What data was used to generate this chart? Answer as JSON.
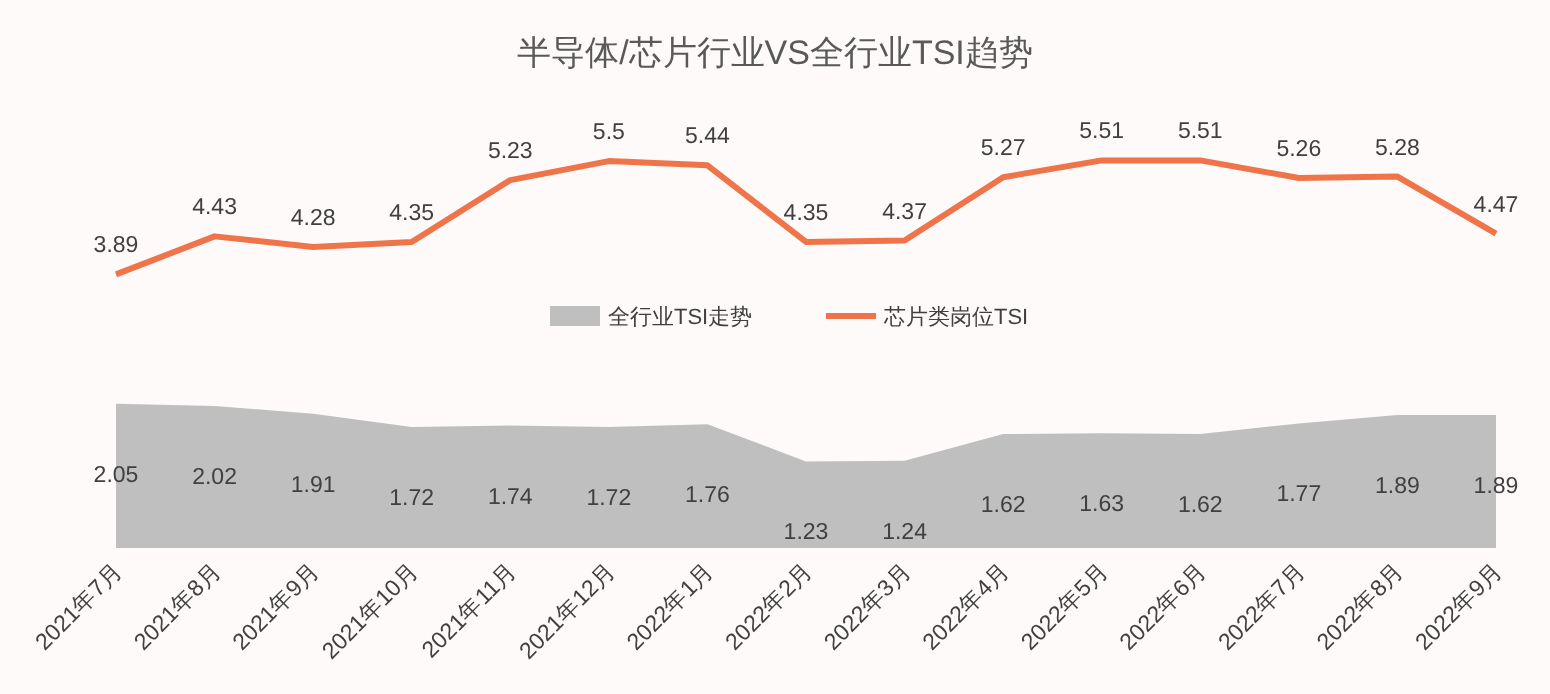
{
  "chart_data": {
    "type": "line",
    "title": "半导体/芯片行业VS全行业TSI趋势",
    "categories": [
      "2021年7月",
      "2021年8月",
      "2021年9月",
      "2021年10月",
      "2021年11月",
      "2021年12月",
      "2022年1月",
      "2022年2月",
      "2022年3月",
      "2022年4月",
      "2022年5月",
      "2022年6月",
      "2022年7月",
      "2022年8月",
      "2022年9月"
    ],
    "series": [
      {
        "name": "全行业TSI走势",
        "type": "area",
        "color": "#bfbfbf",
        "values": [
          2.05,
          2.02,
          1.91,
          1.72,
          1.74,
          1.72,
          1.76,
          1.23,
          1.24,
          1.62,
          1.63,
          1.62,
          1.77,
          1.89,
          1.89
        ]
      },
      {
        "name": "芯片类岗位TSI",
        "color": "#f0744a",
        "values": [
          3.89,
          4.43,
          4.28,
          4.35,
          5.23,
          5.5,
          5.44,
          4.35,
          4.37,
          5.27,
          5.51,
          5.51,
          5.26,
          5.28,
          4.47
        ]
      }
    ],
    "data_labels": true,
    "legend": "center",
    "marker": "none"
  }
}
